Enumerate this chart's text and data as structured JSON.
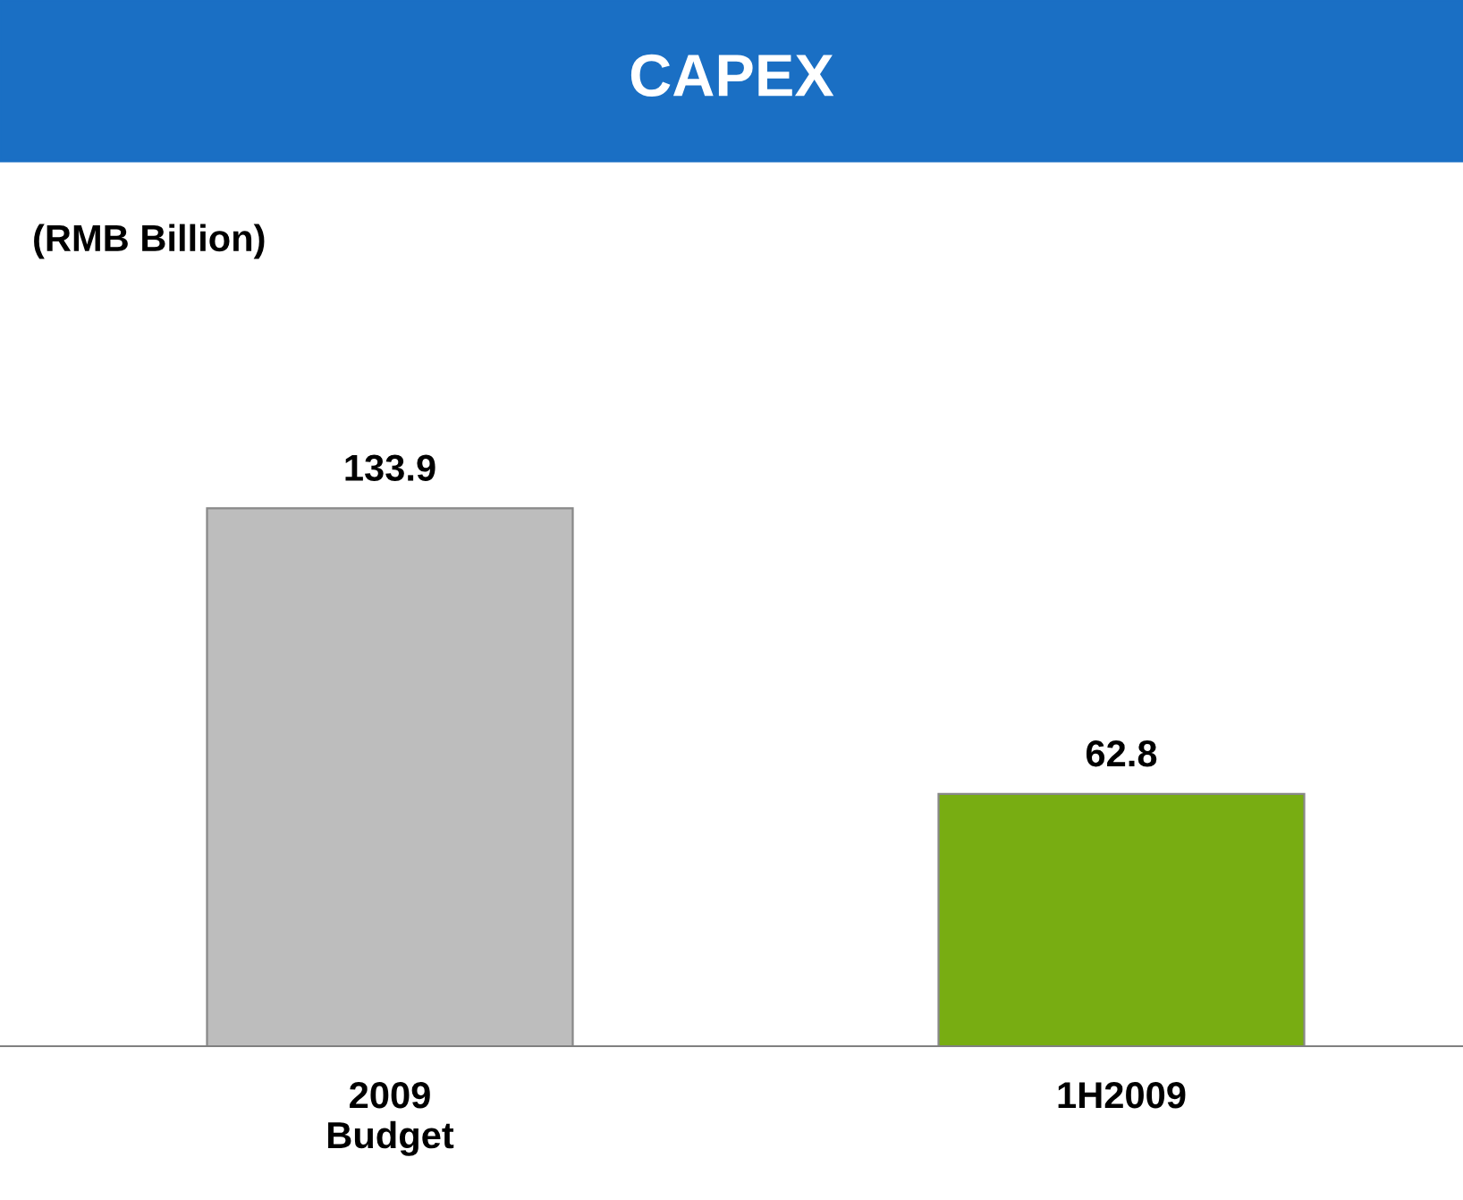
{
  "chart_data": {
    "type": "bar",
    "title": "CAPEX",
    "subtitle": "(RMB Billion)",
    "categories": [
      "2009\nBudget",
      "1H2009"
    ],
    "values": [
      133.9,
      62.8
    ],
    "colors": [
      "#bdbdbd",
      "#78ad12"
    ],
    "data_labels": true,
    "grid": false,
    "legend": false
  }
}
